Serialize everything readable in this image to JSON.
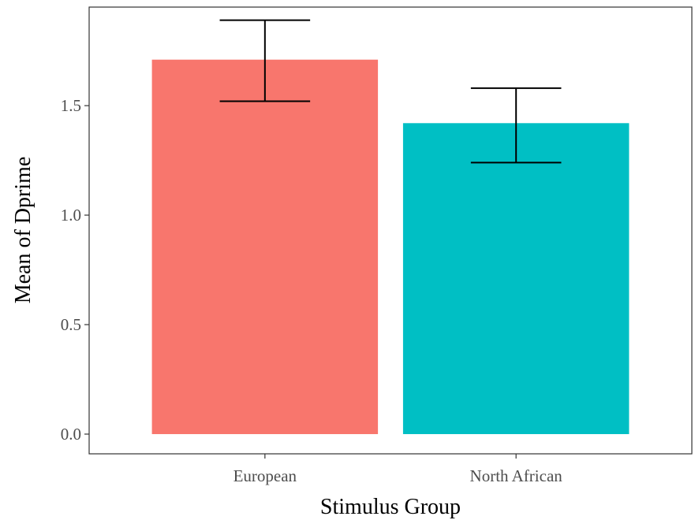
{
  "chart_data": {
    "type": "bar",
    "xlabel": "Stimulus Group",
    "ylabel": "Mean of Dprime",
    "categories": [
      "European",
      "North African"
    ],
    "values": [
      1.71,
      1.42
    ],
    "error_bars": [
      {
        "low": 1.52,
        "high": 1.89
      },
      {
        "low": 1.24,
        "high": 1.58
      }
    ],
    "colors": [
      "#F8766D",
      "#00BFC4"
    ],
    "ylim": [
      -0.09,
      1.95
    ],
    "yticks": [
      0.0,
      0.5,
      1.0,
      1.5
    ],
    "ytick_labels": [
      "0.0",
      "0.5",
      "1.0",
      "1.5"
    ],
    "grid": false,
    "legend": "none"
  }
}
